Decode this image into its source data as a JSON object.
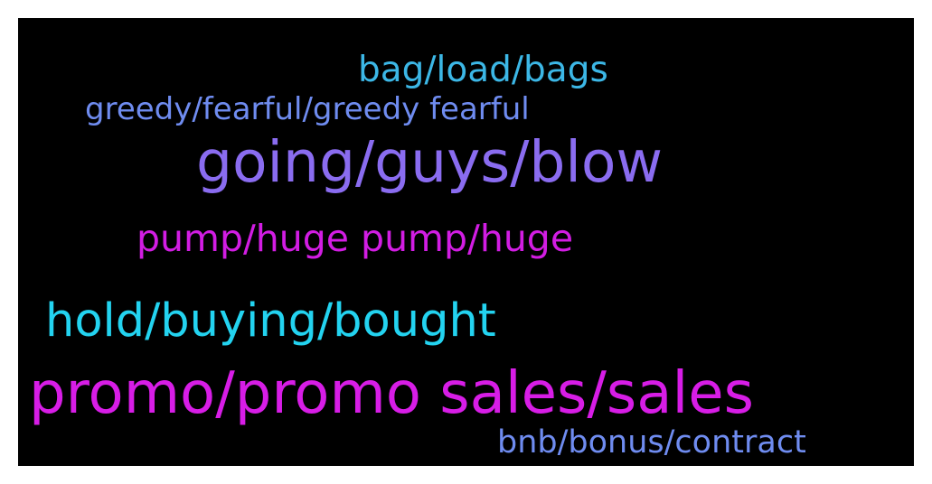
{
  "words": [
    {
      "id": "bag",
      "text": "bag/load/bags",
      "color": "#3cb7e6"
    },
    {
      "id": "greedy",
      "text": "greedy/fearful/greedy fearful",
      "color": "#6f8cf0"
    },
    {
      "id": "going",
      "text": "going/guys/blow",
      "color": "#8a6cf0"
    },
    {
      "id": "pump",
      "text": "pump/huge pump/huge",
      "color": "#d21de3"
    },
    {
      "id": "hold",
      "text": "hold/buying/bought",
      "color": "#23d3f0"
    },
    {
      "id": "promo",
      "text": "promo/promo sales/sales",
      "color": "#d71de6"
    },
    {
      "id": "bnb",
      "text": "bnb/bonus/contract",
      "color": "#6f8cf0"
    }
  ]
}
